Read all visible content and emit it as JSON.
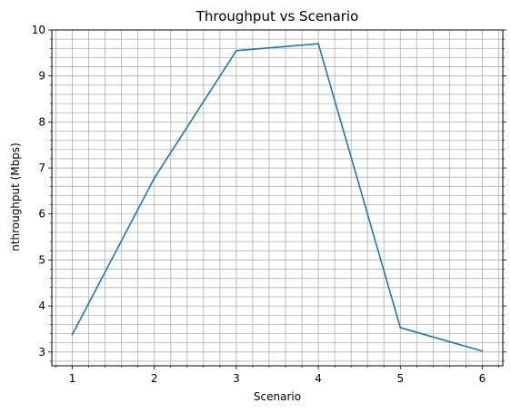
{
  "chart_data": {
    "type": "line",
    "title": "Throughput vs Scenario",
    "xlabel": "Scenario",
    "ylabel": "nthroughput (Mbps)",
    "x": [
      1,
      2,
      3,
      4,
      5,
      6
    ],
    "series": [
      {
        "values": [
          3.38,
          6.78,
          9.55,
          9.7,
          3.53,
          3.02
        ]
      }
    ],
    "xlim": [
      0.75,
      6.25
    ],
    "ylim": [
      2.7,
      10.0
    ],
    "xticks": [
      1,
      2,
      3,
      4,
      5,
      6
    ],
    "yticks": [
      3,
      4,
      5,
      6,
      7,
      8,
      9,
      10
    ],
    "x_minor_step": 0.2,
    "y_minor_step": 0.2,
    "grid": "major and minor",
    "colors": {
      "line": "#1f77b4",
      "grid": "#b0b0b0",
      "axes": "#000000"
    }
  }
}
